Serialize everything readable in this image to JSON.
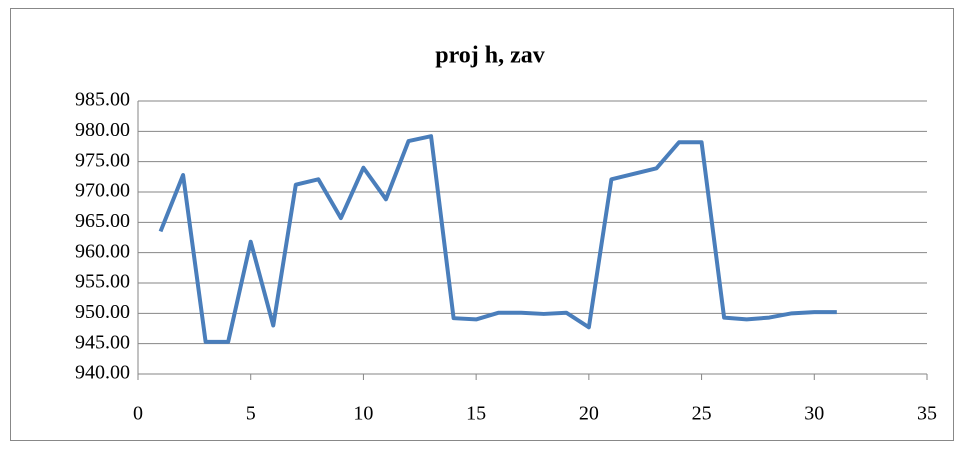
{
  "chart_data": {
    "type": "line",
    "title": "proj h, zav",
    "x": [
      1,
      2,
      3,
      4,
      5,
      6,
      7,
      8,
      9,
      10,
      11,
      12,
      13,
      14,
      15,
      16,
      17,
      18,
      19,
      20,
      21,
      22,
      23,
      24,
      25,
      26,
      27,
      28,
      29,
      30,
      31
    ],
    "series": [
      {
        "name": "proj h, zav",
        "color": "#4a7ebb",
        "values": [
          963.5,
          972.8,
          945.3,
          945.3,
          961.8,
          948.0,
          971.2,
          972.1,
          965.7,
          974.0,
          968.8,
          978.4,
          979.2,
          949.2,
          949.0,
          950.1,
          950.1,
          949.9,
          950.1,
          947.7,
          972.1,
          973.0,
          973.9,
          978.2,
          978.2,
          949.3,
          949.0,
          949.3,
          950.0,
          950.2,
          950.2
        ]
      }
    ],
    "xlim": [
      0,
      35
    ],
    "xticks": [
      0,
      5,
      10,
      15,
      20,
      25,
      30,
      35
    ],
    "ylim": [
      940,
      985
    ],
    "yticks": [
      {
        "value": 940,
        "label": "940.00"
      },
      {
        "value": 945,
        "label": "945.00"
      },
      {
        "value": 950,
        "label": "950.00"
      },
      {
        "value": 955,
        "label": "955.00"
      },
      {
        "value": 960,
        "label": "960.00"
      },
      {
        "value": 965,
        "label": "965.00"
      },
      {
        "value": 970,
        "label": "970.00"
      },
      {
        "value": 975,
        "label": "975.00"
      },
      {
        "value": 980,
        "label": "980.00"
      },
      {
        "value": 985,
        "label": "985.00"
      }
    ],
    "grid": true
  }
}
